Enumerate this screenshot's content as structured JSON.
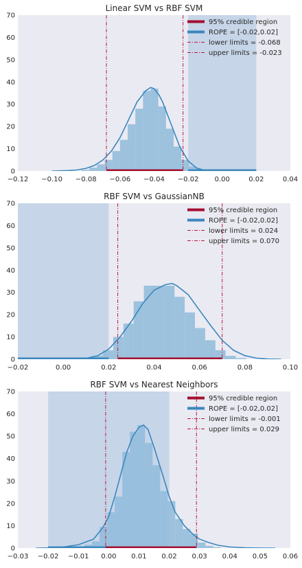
{
  "chart_data": [
    {
      "type": "histogram",
      "title": "Linear SVM vs RBF SVM",
      "xlim": [
        -0.12,
        0.04
      ],
      "ylim": [
        0,
        70
      ],
      "xticks": [
        -0.12,
        -0.1,
        -0.08,
        -0.06,
        -0.04,
        -0.02,
        0.0,
        0.02,
        0.04
      ],
      "xtick_labels": [
        "−0.12",
        "−0.10",
        "−0.08",
        "−0.06",
        "−0.04",
        "−0.02",
        "0.00",
        "0.02",
        "0.04"
      ],
      "yticks": [
        0,
        10,
        20,
        30,
        40,
        50,
        60,
        70
      ],
      "ytick_labels": [
        "0",
        "10",
        "20",
        "30",
        "40",
        "50",
        "60",
        "70"
      ],
      "grid": false,
      "rope": [
        -0.02,
        0.02
      ],
      "credible_region": [
        -0.068,
        -0.023
      ],
      "lower_limit": -0.068,
      "upper_limit": -0.023,
      "histogram": {
        "bin_edges": [
          -0.0825,
          -0.078,
          -0.0735,
          -0.069,
          -0.0645,
          -0.06,
          -0.0555,
          -0.051,
          -0.0465,
          -0.042,
          -0.0375,
          -0.033,
          -0.0285,
          -0.024,
          -0.0195,
          -0.015,
          -0.0105,
          -0.006
        ],
        "heights": [
          0.5,
          1.5,
          3,
          5,
          9,
          14,
          21,
          28,
          36,
          37,
          29,
          19,
          11,
          5,
          2,
          0.7,
          0.2
        ]
      },
      "kde": {
        "x": [
          -0.1,
          -0.09,
          -0.085,
          -0.08,
          -0.075,
          -0.07,
          -0.065,
          -0.06,
          -0.055,
          -0.05,
          -0.045,
          -0.042,
          -0.04,
          -0.037,
          -0.035,
          -0.03,
          -0.025,
          -0.02,
          -0.015,
          -0.01,
          -0.005,
          0.0,
          0.02
        ],
        "y": [
          0,
          0.2,
          0.5,
          1.2,
          2.5,
          5,
          9,
          15,
          23,
          31,
          36,
          37.5,
          37,
          34,
          31,
          21,
          11,
          4.5,
          1.3,
          0.3,
          0.05,
          0,
          0
        ]
      },
      "legend": {
        "position": "top-right",
        "entries": [
          "95% credible region",
          "ROPE = [-0.02,0.02]",
          "lower limits = -0.068",
          "upper limits = -0.023"
        ]
      }
    },
    {
      "type": "histogram",
      "title": "RBF SVM vs GaussianNB",
      "xlim": [
        -0.02,
        0.1
      ],
      "ylim": [
        0,
        70
      ],
      "xticks": [
        -0.02,
        0.0,
        0.02,
        0.04,
        0.06,
        0.08,
        0.1
      ],
      "xtick_labels": [
        "−0.02",
        "0.00",
        "0.02",
        "0.04",
        "0.06",
        "0.08",
        "0.10"
      ],
      "yticks": [
        0,
        10,
        20,
        30,
        40,
        50,
        60,
        70
      ],
      "ytick_labels": [
        "0",
        "10",
        "20",
        "30",
        "40",
        "50",
        "60",
        "70"
      ],
      "grid": false,
      "rope": [
        -0.02,
        0.02
      ],
      "credible_region": [
        0.024,
        0.07
      ],
      "lower_limit": 0.024,
      "upper_limit": 0.07,
      "histogram": {
        "bin_edges": [
          0.0085,
          0.013,
          0.0175,
          0.022,
          0.0265,
          0.031,
          0.0355,
          0.04,
          0.0445,
          0.049,
          0.0535,
          0.058,
          0.0625,
          0.067,
          0.0715,
          0.076,
          0.0805
        ],
        "heights": [
          0.5,
          1.5,
          4,
          10,
          16,
          26,
          33,
          33,
          33,
          28,
          21,
          14,
          8.5,
          4,
          1.5,
          0.5
        ]
      },
      "kde": {
        "x": [
          -0.02,
          0.005,
          0.01,
          0.015,
          0.02,
          0.025,
          0.03,
          0.035,
          0.04,
          0.045,
          0.048,
          0.05,
          0.055,
          0.06,
          0.065,
          0.07,
          0.075,
          0.08,
          0.085,
          0.09,
          0.096
        ],
        "y": [
          0,
          0.1,
          0.4,
          1.5,
          4.5,
          10,
          17,
          25,
          31,
          33.5,
          34,
          33,
          29,
          22,
          15,
          8.5,
          4,
          1.6,
          0.5,
          0.1,
          0
        ]
      },
      "legend": {
        "position": "top-right",
        "entries": [
          "95% credible region",
          "ROPE = [-0.02,0.02]",
          "lower limits = 0.024",
          "upper limits = 0.070"
        ]
      }
    },
    {
      "type": "histogram",
      "title": "RBF SVM vs Nearest Neighbors",
      "xlim": [
        -0.03,
        0.06
      ],
      "ylim": [
        0,
        70
      ],
      "xticks": [
        -0.03,
        -0.02,
        -0.01,
        0.0,
        0.01,
        0.02,
        0.03,
        0.04,
        0.05,
        0.06
      ],
      "xtick_labels": [
        "−0.03",
        "−0.02",
        "−0.01",
        "0.00",
        "0.01",
        "0.02",
        "0.03",
        "0.04",
        "0.05",
        "0.06"
      ],
      "yticks": [
        0,
        10,
        20,
        30,
        40,
        50,
        60,
        70
      ],
      "ytick_labels": [
        "0",
        "10",
        "20",
        "30",
        "40",
        "50",
        "60",
        "70"
      ],
      "grid": false,
      "rope": [
        -0.02,
        0.02
      ],
      "credible_region": [
        -0.001,
        0.029
      ],
      "lower_limit": -0.001,
      "upper_limit": 0.029,
      "histogram": {
        "bin_edges": [
          -0.0105,
          -0.008,
          -0.0055,
          -0.003,
          -0.0005,
          0.002,
          0.0045,
          0.007,
          0.0095,
          0.012,
          0.0145,
          0.017,
          0.0195,
          0.022,
          0.0245,
          0.027,
          0.0295,
          0.032,
          0.0345,
          0.037
        ],
        "heights": [
          0.5,
          1.5,
          3,
          9.5,
          16,
          23,
          43,
          52,
          55,
          47,
          37,
          25.5,
          21,
          13,
          8.5,
          6.5,
          2.5,
          1,
          0.4
        ]
      },
      "kde": {
        "x": [
          -0.024,
          -0.02,
          -0.015,
          -0.01,
          -0.005,
          -0.002,
          0.0,
          0.002,
          0.004,
          0.006,
          0.008,
          0.01,
          0.0115,
          0.013,
          0.015,
          0.018,
          0.02,
          0.022,
          0.025,
          0.028,
          0.03,
          0.033,
          0.036,
          0.04,
          0.045,
          0.05,
          0.055
        ],
        "y": [
          0,
          0.1,
          0.5,
          1.5,
          4,
          9,
          14,
          23,
          33,
          43,
          50,
          54,
          55,
          53,
          45,
          32,
          23,
          16,
          10,
          6,
          4,
          2.5,
          1.3,
          0.5,
          0.15,
          0.03,
          0
        ]
      },
      "legend": {
        "position": "top-right",
        "entries": [
          "95% credible region",
          "ROPE = [-0.02,0.02]",
          "lower limits = -0.001",
          "upper limits = 0.029"
        ]
      }
    }
  ],
  "colors": {
    "axes_background": "#eaeaf2",
    "rope_fill": "#b9cde4",
    "histogram_fill": "#8fbbda",
    "kde_line": "#3a87bd",
    "credible_region": "#a40f30",
    "limit_lines": "#b8173e",
    "text": "#262626"
  }
}
